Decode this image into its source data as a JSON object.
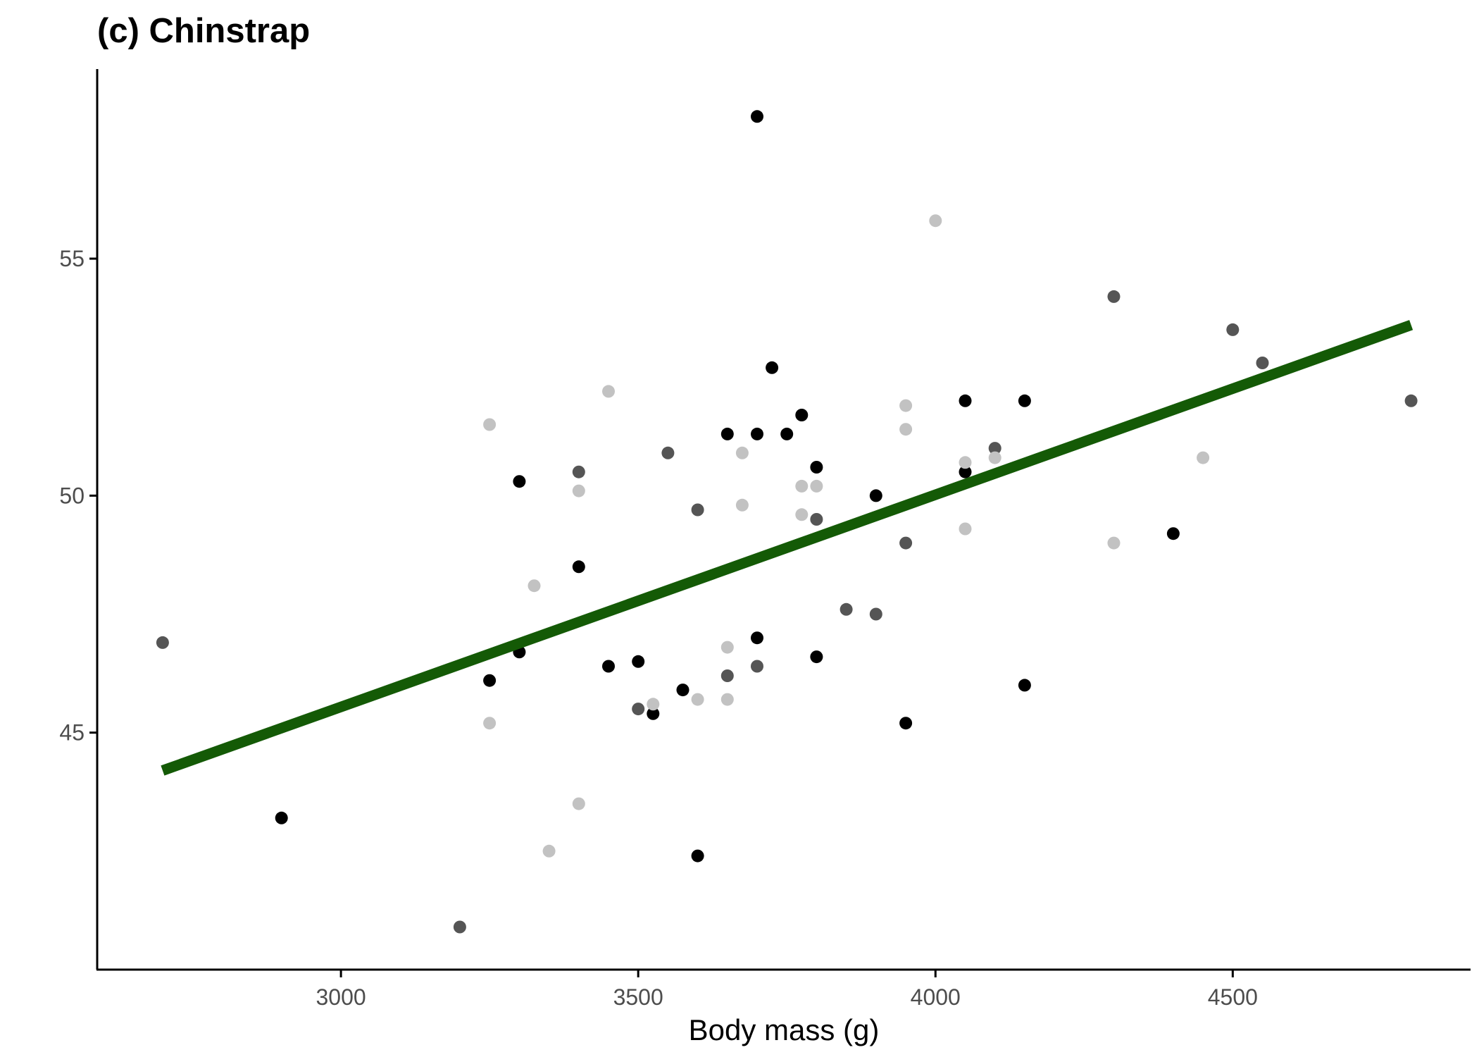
{
  "chart_data": {
    "type": "scatter",
    "title": "(c) Chinstrap",
    "xlabel": "Body mass (g)",
    "ylabel": "",
    "xlim": [
      2590,
      4900
    ],
    "ylim": [
      40,
      59.0
    ],
    "x_ticks": [
      3000,
      3500,
      4000,
      4500
    ],
    "y_ticks": [
      45,
      50,
      55
    ],
    "grid": false,
    "legend": "none",
    "fit_line": {
      "x": [
        2700,
        4800
      ],
      "y": [
        44.2,
        53.6
      ],
      "color": "#145a06"
    },
    "series": [
      {
        "color": "#000000",
        "points": [
          [
            3700,
            58.0
          ],
          [
            3725,
            52.7
          ],
          [
            3775,
            51.7
          ],
          [
            3650,
            51.3
          ],
          [
            3700,
            51.3
          ],
          [
            3750,
            51.3
          ],
          [
            3800,
            50.6
          ],
          [
            3300,
            50.3
          ],
          [
            3900,
            50.0
          ],
          [
            4050,
            52.0
          ],
          [
            4150,
            52.0
          ],
          [
            4050,
            50.5
          ],
          [
            3400,
            48.5
          ],
          [
            4400,
            49.2
          ],
          [
            3700,
            47.0
          ],
          [
            3800,
            46.6
          ],
          [
            3300,
            46.7
          ],
          [
            3500,
            46.5
          ],
          [
            3450,
            46.4
          ],
          [
            3250,
            46.1
          ],
          [
            3575,
            45.9
          ],
          [
            3525,
            45.4
          ],
          [
            4150,
            46.0
          ],
          [
            3950,
            45.2
          ],
          [
            2900,
            43.2
          ],
          [
            3600,
            42.4
          ]
        ]
      },
      {
        "color": "#555555",
        "points": [
          [
            4300,
            54.2
          ],
          [
            4500,
            53.5
          ],
          [
            4550,
            52.8
          ],
          [
            4800,
            52.0
          ],
          [
            2700,
            46.9
          ],
          [
            3400,
            50.5
          ],
          [
            3550,
            50.9
          ],
          [
            3600,
            49.7
          ],
          [
            3800,
            49.5
          ],
          [
            3950,
            49.0
          ],
          [
            4100,
            51.0
          ],
          [
            3850,
            47.6
          ],
          [
            3900,
            47.5
          ],
          [
            3700,
            46.4
          ],
          [
            3650,
            46.2
          ],
          [
            3500,
            45.5
          ],
          [
            3200,
            40.9
          ]
        ]
      },
      {
        "color": "#c2c2c2",
        "points": [
          [
            4000,
            55.8
          ],
          [
            3450,
            52.2
          ],
          [
            3250,
            51.5
          ],
          [
            3950,
            51.9
          ],
          [
            3950,
            51.4
          ],
          [
            3675,
            50.9
          ],
          [
            3400,
            50.1
          ],
          [
            3775,
            50.2
          ],
          [
            3800,
            50.2
          ],
          [
            3675,
            49.8
          ],
          [
            3775,
            49.6
          ],
          [
            4050,
            50.7
          ],
          [
            4100,
            50.8
          ],
          [
            4050,
            49.3
          ],
          [
            4300,
            49.0
          ],
          [
            4450,
            50.8
          ],
          [
            3325,
            48.1
          ],
          [
            3650,
            46.8
          ],
          [
            3600,
            45.7
          ],
          [
            3650,
            45.7
          ],
          [
            3525,
            45.6
          ],
          [
            3250,
            45.2
          ],
          [
            3400,
            43.5
          ],
          [
            3350,
            42.5
          ]
        ]
      }
    ]
  }
}
